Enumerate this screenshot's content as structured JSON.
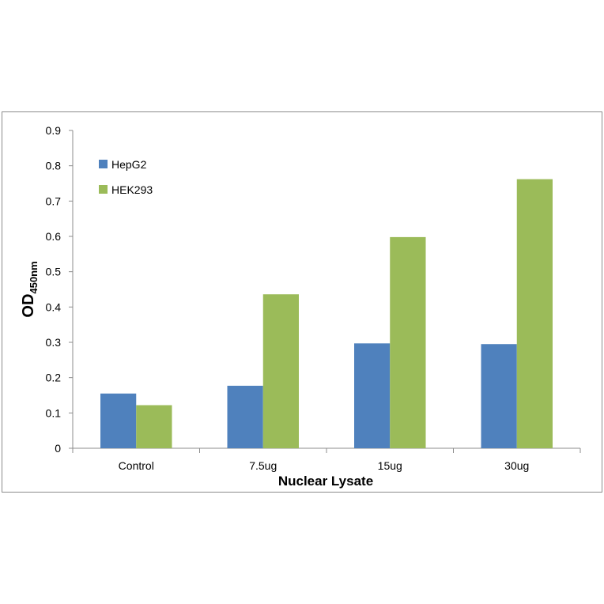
{
  "chart_data": {
    "type": "bar",
    "categories": [
      "Control",
      "7.5ug",
      "15ug",
      "30ug"
    ],
    "series": [
      {
        "name": "HepG2",
        "values": [
          0.155,
          0.177,
          0.297,
          0.295
        ],
        "color": "#4f81bd"
      },
      {
        "name": "HEK293",
        "values": [
          0.122,
          0.436,
          0.598,
          0.762
        ],
        "color": "#9bbb59"
      }
    ],
    "xlabel": "Nuclear Lysate",
    "ylabel": "OD",
    "ylabel_subscript": "450nm",
    "ylim": [
      0,
      0.9
    ],
    "yticks": [
      "0",
      "0.1",
      "0.2",
      "0.3",
      "0.4",
      "0.5",
      "0.6",
      "0.7",
      "0.8",
      "0.9"
    ],
    "grid": false,
    "legend_position": "top-left"
  }
}
